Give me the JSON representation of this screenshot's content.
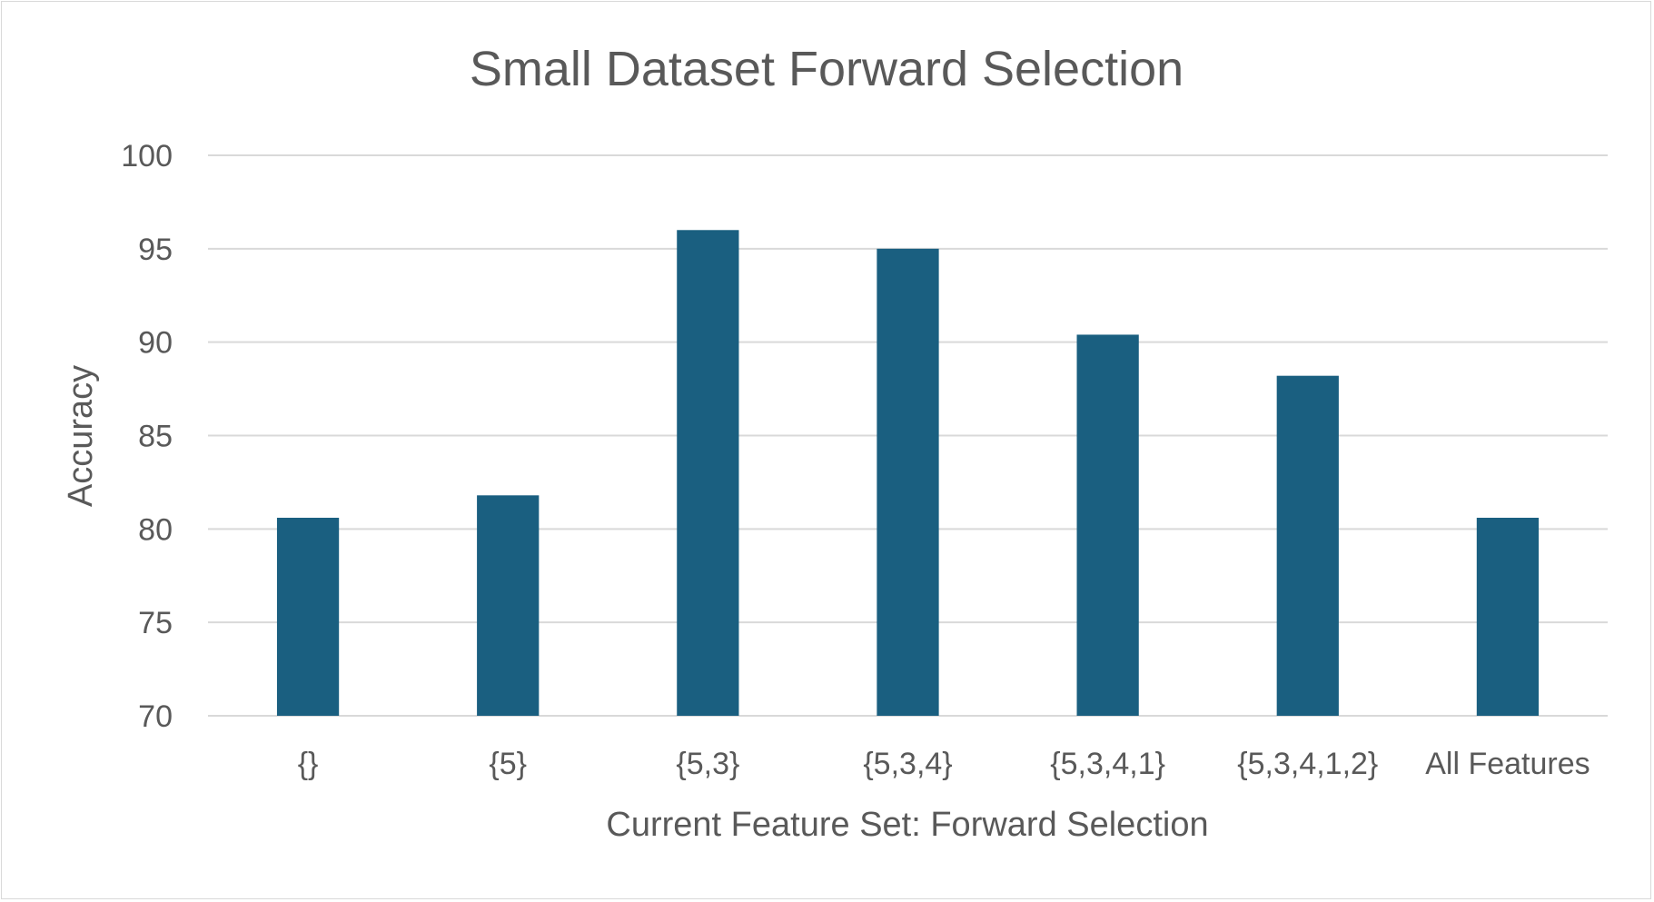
{
  "chart_data": {
    "type": "bar",
    "title": "Small Dataset Forward Selection",
    "xlabel": "Current Feature Set: Forward Selection",
    "ylabel": "Accuracy",
    "categories": [
      "{}",
      "{5}",
      "{5,3}",
      "{5,3,4}",
      "{5,3,4,1}",
      "{5,3,4,1,2}",
      "All Features"
    ],
    "values": [
      80.6,
      81.8,
      96.0,
      95.0,
      90.4,
      88.2,
      80.6
    ],
    "ylim": [
      70,
      100
    ],
    "yticks": [
      70,
      75,
      80,
      85,
      90,
      95,
      100
    ],
    "grid": true,
    "legend": "none",
    "bar_color": "#1a5f80",
    "grid_color": "#d9d9d9",
    "text_color": "#595959"
  }
}
